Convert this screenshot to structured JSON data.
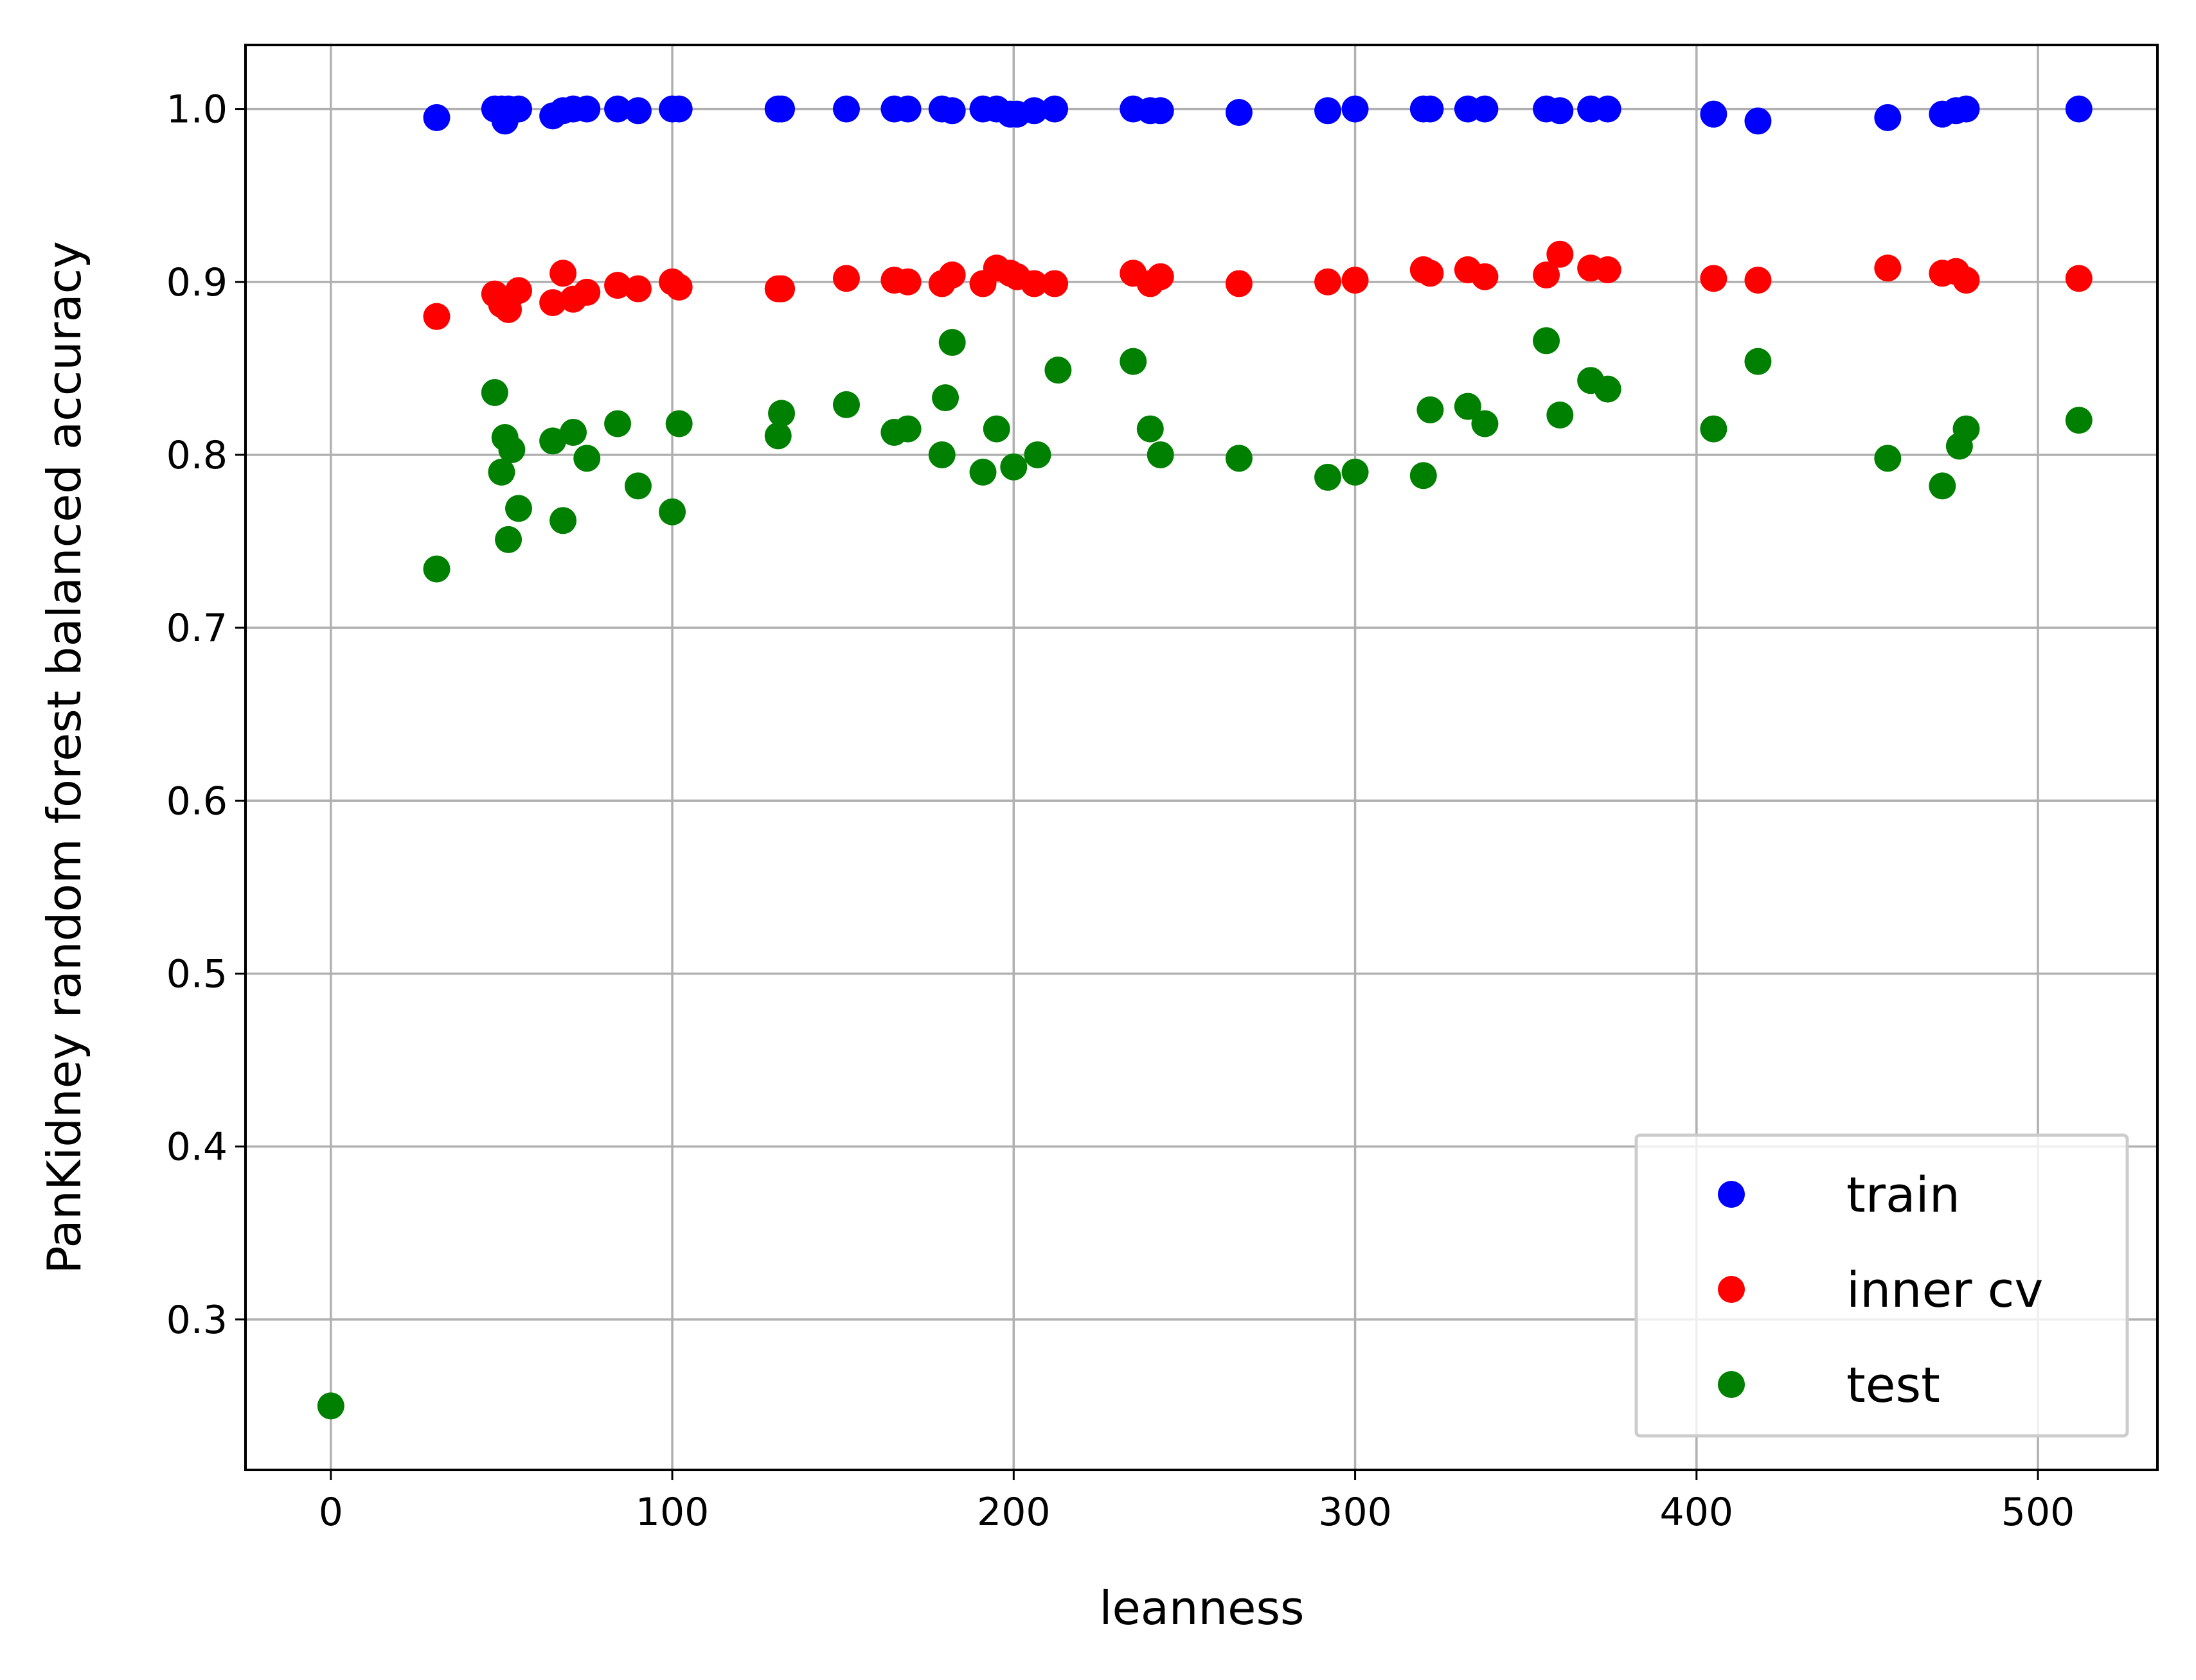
{
  "chart_data": {
    "type": "scatter",
    "xlabel": "leanness",
    "ylabel": "PanKidney random forest balanced accuracy",
    "xlim": [
      -25,
      535
    ],
    "ylim": [
      0.213,
      1.037
    ],
    "xticks": [
      0,
      100,
      200,
      300,
      400,
      500
    ],
    "yticks": [
      0.3,
      0.4,
      0.5,
      0.6,
      0.7,
      0.8,
      0.9,
      1.0
    ],
    "xtick_labels": [
      "0",
      "100",
      "200",
      "300",
      "400",
      "500"
    ],
    "ytick_labels": [
      "0.3",
      "0.4",
      "0.5",
      "0.6",
      "0.7",
      "0.8",
      "0.9",
      "1.0"
    ],
    "grid": true,
    "legend_position": "lower-right",
    "series": [
      {
        "name": "train",
        "color": "#0000ff",
        "points": [
          [
            31,
            0.995
          ],
          [
            48,
            1.0
          ],
          [
            50,
            1.0
          ],
          [
            51,
            0.993
          ],
          [
            52,
            1.0
          ],
          [
            55,
            1.0
          ],
          [
            65,
            0.996
          ],
          [
            68,
            0.999
          ],
          [
            71,
            1.0
          ],
          [
            75,
            1.0
          ],
          [
            84,
            1.0
          ],
          [
            90,
            0.999
          ],
          [
            100,
            1.0
          ],
          [
            102,
            1.0
          ],
          [
            131,
            1.0
          ],
          [
            132,
            1.0
          ],
          [
            151,
            1.0
          ],
          [
            165,
            1.0
          ],
          [
            169,
            1.0
          ],
          [
            179,
            1.0
          ],
          [
            182,
            0.999
          ],
          [
            191,
            1.0
          ],
          [
            195,
            1.0
          ],
          [
            199,
            0.997
          ],
          [
            201,
            0.997
          ],
          [
            206,
            0.999
          ],
          [
            212,
            1.0
          ],
          [
            235,
            1.0
          ],
          [
            240,
            0.999
          ],
          [
            243,
            0.999
          ],
          [
            266,
            0.998
          ],
          [
            292,
            0.999
          ],
          [
            300,
            1.0
          ],
          [
            320,
            1.0
          ],
          [
            322,
            1.0
          ],
          [
            333,
            1.0
          ],
          [
            338,
            1.0
          ],
          [
            356,
            1.0
          ],
          [
            360,
            0.999
          ],
          [
            369,
            1.0
          ],
          [
            374,
            1.0
          ],
          [
            405,
            0.997
          ],
          [
            418,
            0.993
          ],
          [
            456,
            0.995
          ],
          [
            472,
            0.997
          ],
          [
            476,
            0.999
          ],
          [
            479,
            1.0
          ],
          [
            512,
            1.0
          ]
        ]
      },
      {
        "name": "inner cv",
        "color": "#ff0000",
        "points": [
          [
            31,
            0.88
          ],
          [
            48,
            0.893
          ],
          [
            50,
            0.887
          ],
          [
            52,
            0.884
          ],
          [
            55,
            0.895
          ],
          [
            65,
            0.888
          ],
          [
            68,
            0.905
          ],
          [
            71,
            0.89
          ],
          [
            75,
            0.894
          ],
          [
            84,
            0.898
          ],
          [
            90,
            0.896
          ],
          [
            100,
            0.9
          ],
          [
            102,
            0.897
          ],
          [
            131,
            0.896
          ],
          [
            132,
            0.896
          ],
          [
            151,
            0.902
          ],
          [
            165,
            0.901
          ],
          [
            169,
            0.9
          ],
          [
            179,
            0.899
          ],
          [
            182,
            0.904
          ],
          [
            191,
            0.899
          ],
          [
            195,
            0.908
          ],
          [
            199,
            0.905
          ],
          [
            201,
            0.903
          ],
          [
            206,
            0.899
          ],
          [
            212,
            0.899
          ],
          [
            235,
            0.905
          ],
          [
            240,
            0.899
          ],
          [
            243,
            0.903
          ],
          [
            266,
            0.899
          ],
          [
            292,
            0.9
          ],
          [
            300,
            0.901
          ],
          [
            320,
            0.907
          ],
          [
            322,
            0.905
          ],
          [
            333,
            0.907
          ],
          [
            338,
            0.903
          ],
          [
            356,
            0.904
          ],
          [
            360,
            0.916
          ],
          [
            369,
            0.908
          ],
          [
            374,
            0.907
          ],
          [
            405,
            0.902
          ],
          [
            418,
            0.901
          ],
          [
            456,
            0.908
          ],
          [
            472,
            0.905
          ],
          [
            476,
            0.906
          ],
          [
            479,
            0.901
          ],
          [
            512,
            0.902
          ]
        ]
      },
      {
        "name": "test",
        "color": "#008000",
        "points": [
          [
            0,
            0.25
          ],
          [
            31,
            0.734
          ],
          [
            48,
            0.836
          ],
          [
            50,
            0.79
          ],
          [
            51,
            0.81
          ],
          [
            52,
            0.751
          ],
          [
            53,
            0.803
          ],
          [
            55,
            0.769
          ],
          [
            65,
            0.808
          ],
          [
            68,
            0.762
          ],
          [
            71,
            0.813
          ],
          [
            75,
            0.798
          ],
          [
            84,
            0.818
          ],
          [
            90,
            0.782
          ],
          [
            100,
            0.767
          ],
          [
            102,
            0.818
          ],
          [
            131,
            0.811
          ],
          [
            132,
            0.824
          ],
          [
            151,
            0.829
          ],
          [
            165,
            0.813
          ],
          [
            169,
            0.815
          ],
          [
            179,
            0.8
          ],
          [
            180,
            0.833
          ],
          [
            182,
            0.865
          ],
          [
            191,
            0.79
          ],
          [
            195,
            0.815
          ],
          [
            200,
            0.793
          ],
          [
            207,
            0.8
          ],
          [
            213,
            0.849
          ],
          [
            235,
            0.854
          ],
          [
            240,
            0.815
          ],
          [
            243,
            0.8
          ],
          [
            266,
            0.798
          ],
          [
            292,
            0.787
          ],
          [
            300,
            0.79
          ],
          [
            320,
            0.788
          ],
          [
            322,
            0.826
          ],
          [
            333,
            0.828
          ],
          [
            338,
            0.818
          ],
          [
            356,
            0.866
          ],
          [
            360,
            0.823
          ],
          [
            369,
            0.843
          ],
          [
            374,
            0.838
          ],
          [
            405,
            0.815
          ],
          [
            418,
            0.854
          ],
          [
            456,
            0.798
          ],
          [
            472,
            0.782
          ],
          [
            477,
            0.805
          ],
          [
            479,
            0.815
          ],
          [
            512,
            0.82
          ]
        ]
      }
    ]
  }
}
